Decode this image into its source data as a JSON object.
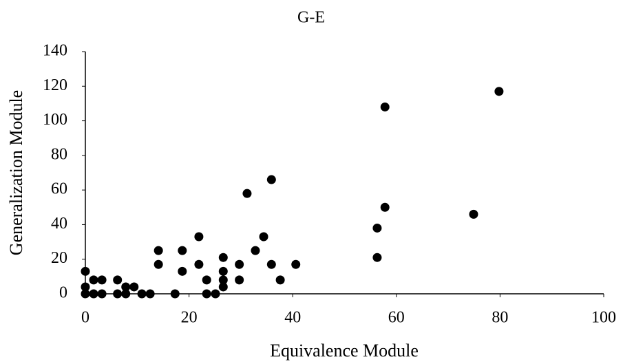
{
  "chart_data": {
    "type": "scatter",
    "title": "G-E",
    "x_label": "Equivalence Module",
    "y_label": "Generalization Module",
    "color": "#000000",
    "xlim": [
      0,
      100
    ],
    "xticks": [
      0,
      20,
      40,
      60,
      80,
      100
    ],
    "ylim": [
      0,
      140
    ],
    "yticks": [
      0,
      20,
      40,
      60,
      80,
      100,
      120,
      140
    ],
    "grid": false,
    "series": [
      {
        "name": "G-E",
        "color": "#000000",
        "x": [
          0,
          0,
          0,
          1.6,
          1.6,
          3.2,
          3.2,
          6.2,
          6.2,
          7.8,
          7.8,
          9.4,
          10.9,
          12.5,
          14.1,
          14.1,
          17.3,
          18.7,
          18.7,
          21.9,
          21.9,
          23.4,
          23.4,
          25.1,
          26.6,
          26.6,
          26.6,
          26.6,
          29.7,
          29.7,
          31.2,
          32.8,
          34.4,
          35.9,
          35.9,
          37.6,
          40.6,
          56.3,
          56.3,
          57.8,
          57.8,
          74.9,
          79.8
        ],
        "values": [
          0,
          4,
          13,
          8,
          0,
          8,
          0,
          8,
          0,
          4,
          0,
          4,
          0,
          0,
          17,
          25,
          0,
          13,
          25,
          17,
          33,
          8,
          0,
          0,
          21,
          13,
          8,
          4,
          17,
          8,
          58,
          25,
          33,
          66,
          17,
          8,
          17,
          38,
          21,
          108,
          50,
          46,
          117
        ]
      }
    ]
  }
}
